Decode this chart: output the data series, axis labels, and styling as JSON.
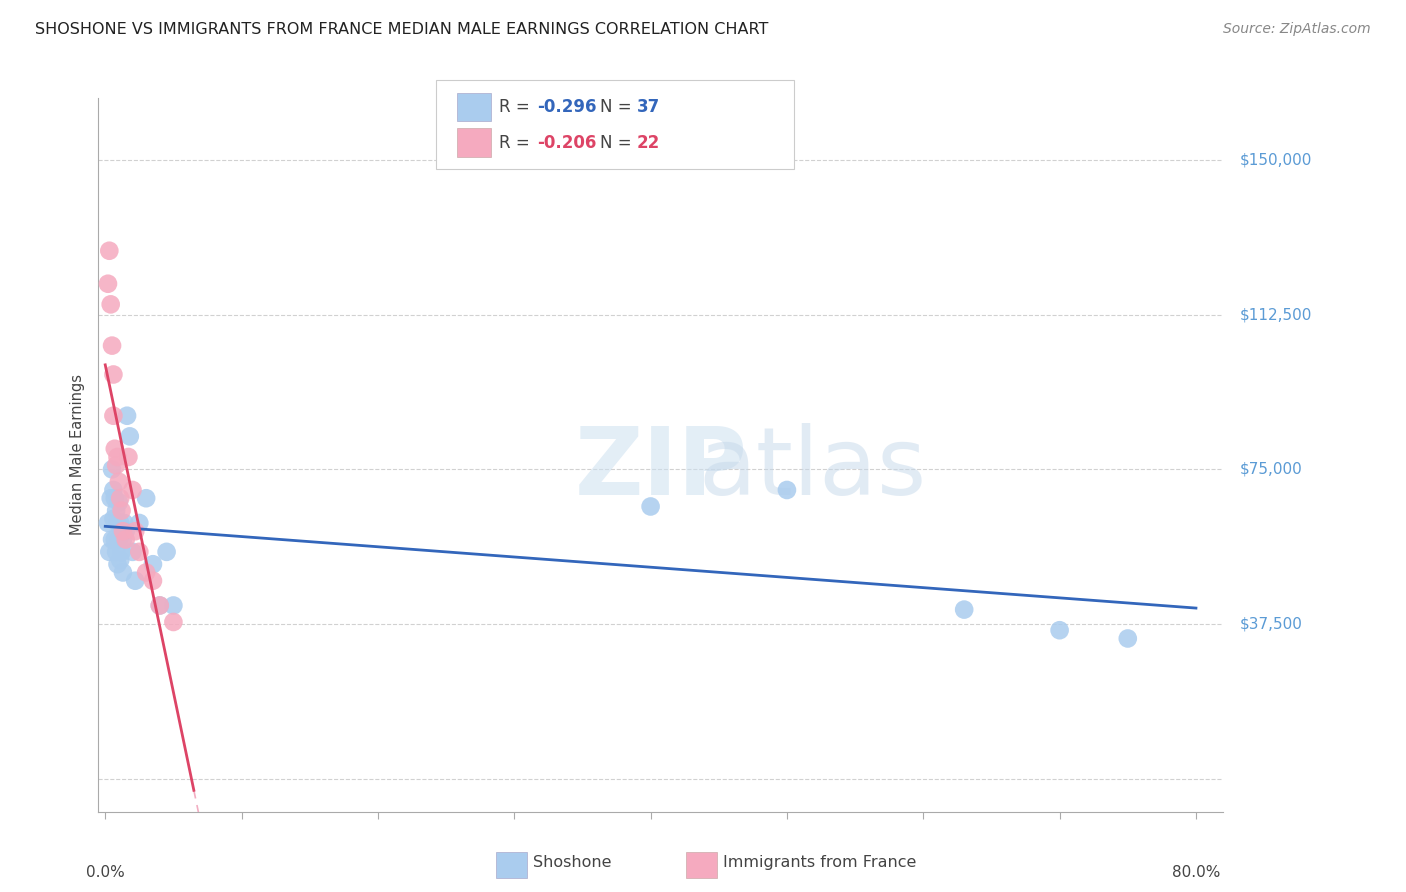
{
  "title": "SHOSHONE VS IMMIGRANTS FROM FRANCE MEDIAN MALE EARNINGS CORRELATION CHART",
  "source": "Source: ZipAtlas.com",
  "ylabel": "Median Male Earnings",
  "y_ticks": [
    0,
    37500,
    75000,
    112500,
    150000
  ],
  "y_tick_labels": [
    "",
    "$37,500",
    "$75,000",
    "$112,500",
    "$150,000"
  ],
  "ylim": [
    -8000,
    165000
  ],
  "xlim": [
    -0.005,
    0.82
  ],
  "shoshone_x": [
    0.002,
    0.003,
    0.004,
    0.005,
    0.005,
    0.006,
    0.006,
    0.007,
    0.007,
    0.008,
    0.008,
    0.009,
    0.009,
    0.01,
    0.01,
    0.011,
    0.011,
    0.012,
    0.013,
    0.013,
    0.014,
    0.015,
    0.016,
    0.018,
    0.02,
    0.022,
    0.025,
    0.03,
    0.035,
    0.04,
    0.045,
    0.05,
    0.4,
    0.5,
    0.63,
    0.7,
    0.75
  ],
  "shoshone_y": [
    62000,
    55000,
    68000,
    75000,
    58000,
    70000,
    63000,
    68000,
    58000,
    65000,
    55000,
    62000,
    52000,
    67000,
    58000,
    62000,
    53000,
    55000,
    58000,
    50000,
    62000,
    60000,
    88000,
    83000,
    55000,
    48000,
    62000,
    68000,
    52000,
    42000,
    55000,
    42000,
    66000,
    70000,
    41000,
    36000,
    34000
  ],
  "france_x": [
    0.002,
    0.003,
    0.004,
    0.005,
    0.006,
    0.006,
    0.007,
    0.008,
    0.009,
    0.01,
    0.011,
    0.012,
    0.013,
    0.015,
    0.017,
    0.02,
    0.022,
    0.025,
    0.03,
    0.035,
    0.04,
    0.05
  ],
  "france_y": [
    120000,
    128000,
    115000,
    105000,
    98000,
    88000,
    80000,
    76000,
    78000,
    72000,
    68000,
    65000,
    60000,
    58000,
    78000,
    70000,
    60000,
    55000,
    50000,
    48000,
    42000,
    38000
  ],
  "shoshone_color": "#aaccee",
  "france_color": "#f5aabf",
  "shoshone_trendline_color": "#3366bb",
  "france_trendline_color": "#dd4466",
  "france_trendline_dashed_color": "#f0a0b8",
  "background_color": "#ffffff",
  "grid_color": "#cccccc",
  "ytick_color": "#5b9bd5",
  "title_color": "#222222",
  "source_color": "#888888",
  "legend_r_color_blue": "#3366bb",
  "legend_r_color_pink": "#dd4466",
  "legend_n_color": "#3366bb",
  "legend_text_color": "#444444"
}
